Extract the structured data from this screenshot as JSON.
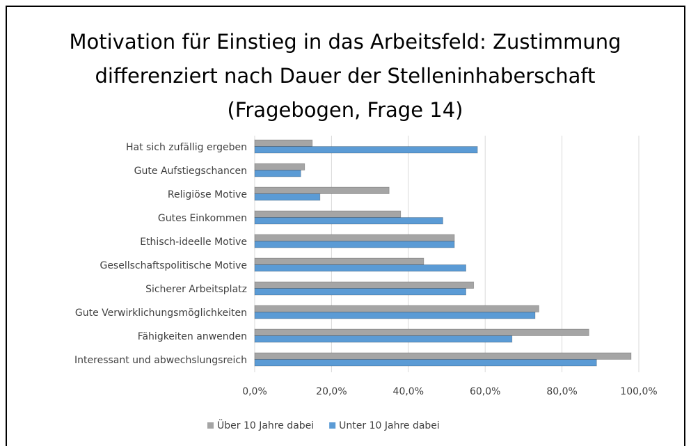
{
  "chart_data": {
    "type": "bar",
    "orientation": "horizontal",
    "title": [
      "Motivation für Einstieg in das Arbeitsfeld: Zustimmung",
      "differenziert nach Dauer der Stelleninhaberschaft",
      "(Fragebogen, Frage 14)"
    ],
    "categories": [
      "Hat sich zufällig ergeben",
      "Gute Aufstiegschancen",
      "Religiöse Motive",
      "Gutes Einkommen",
      "Ethisch-ideelle Motive",
      "Gesellschaftspolitische Motive",
      "Sicherer Arbeitsplatz",
      "Gute Verwirklichungsmöglichkeiten",
      "Fähigkeiten anwenden",
      "Interessant und abwechslungsreich"
    ],
    "series": [
      {
        "name": "Über 10 Jahre dabei",
        "color": "#a5a5a5",
        "values": [
          15,
          13,
          35,
          38,
          52,
          44,
          57,
          74,
          87,
          98
        ]
      },
      {
        "name": "Unter 10 Jahre dabei",
        "color": "#5b9bd5",
        "values": [
          58,
          12,
          17,
          49,
          52,
          55,
          55,
          73,
          67,
          89
        ]
      }
    ],
    "xlim": [
      0,
      100
    ],
    "xticks": [
      {
        "value": 0,
        "label": "0,0%"
      },
      {
        "value": 20,
        "label": "20,0%"
      },
      {
        "value": 40,
        "label": "40,0%"
      },
      {
        "value": 60,
        "label": "60,0%"
      },
      {
        "value": 80,
        "label": "80,0%"
      },
      {
        "value": 100,
        "label": "100,0%"
      }
    ],
    "grid": true,
    "legend": "bottom"
  }
}
